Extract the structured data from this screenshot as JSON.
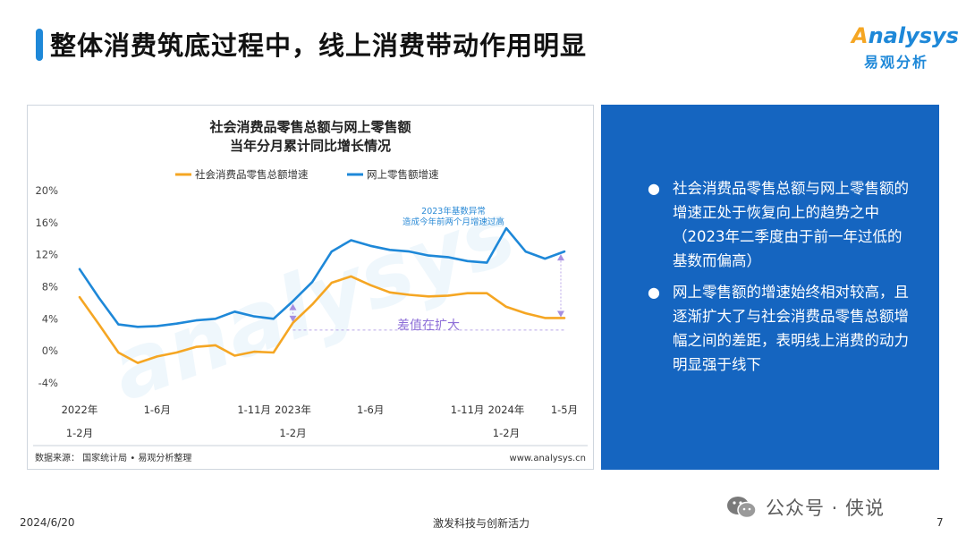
{
  "page": {
    "title": "整体消费筑底过程中，线上消费带动作用明显",
    "logo_en_prefix": "",
    "logo_en_o": "A",
    "logo_en_rest": "nalysys",
    "logo_cn": "易观分析",
    "footer_date": "2024/6/20",
    "footer_center": "激发科技与创新活力",
    "footer_page": "7",
    "wechat_label": "公众号 · 侠说"
  },
  "chart_data": {
    "type": "line",
    "title": "社会消费品零售总额与网上零售额",
    "subtitle": "当年分月累计同比增长情况",
    "categories": [
      "2022年1-2月",
      "2022年1-3月",
      "2022年1-4月",
      "2022年1-5月",
      "2022年1-6月",
      "2022年1-7月",
      "2022年1-8月",
      "2022年1-9月",
      "2022年1-10月",
      "2022年1-11月",
      "2022年1-12月",
      "2023年1-2月",
      "2023年1-3月",
      "2023年1-4月",
      "2023年1-5月",
      "2023年1-6月",
      "2023年1-7月",
      "2023年1-8月",
      "2023年1-9月",
      "2023年1-10月",
      "2023年1-11月",
      "2023年1-12月",
      "2024年1-2月",
      "2024年1-3月",
      "2024年1-4月",
      "2024年1-5月"
    ],
    "tick_labels": [
      {
        "index": 0,
        "lines": [
          "2022年",
          "1-2月"
        ]
      },
      {
        "index": 4,
        "lines": [
          "1-6月"
        ]
      },
      {
        "index": 9,
        "lines": [
          "1-11月"
        ]
      },
      {
        "index": 11,
        "lines": [
          "2023年",
          "1-2月"
        ]
      },
      {
        "index": 15,
        "lines": [
          "1-6月"
        ]
      },
      {
        "index": 20,
        "lines": [
          "1-11月"
        ]
      },
      {
        "index": 22,
        "lines": [
          "2024年",
          "1-2月"
        ]
      },
      {
        "index": 25,
        "lines": [
          "1-5月"
        ]
      }
    ],
    "series": [
      {
        "name": "社会消费品零售总额增速",
        "color": "#f5a623",
        "values": [
          6.7,
          3.3,
          -0.2,
          -1.5,
          -0.7,
          -0.2,
          0.5,
          0.7,
          -0.6,
          -0.1,
          -0.2,
          3.5,
          5.8,
          8.5,
          9.3,
          8.2,
          7.3,
          7.0,
          6.8,
          6.9,
          7.2,
          7.2,
          5.5,
          4.7,
          4.1,
          4.1
        ]
      },
      {
        "name": "网上零售额增速",
        "color": "#1e88d8",
        "values": [
          10.2,
          6.6,
          3.3,
          3.0,
          3.1,
          3.4,
          3.8,
          4.0,
          4.9,
          4.3,
          4.0,
          6.2,
          8.6,
          12.4,
          13.8,
          13.1,
          12.6,
          12.4,
          11.9,
          11.7,
          11.2,
          11.0,
          15.3,
          12.4,
          11.5,
          12.4
        ]
      }
    ],
    "y_ticks": [
      "20%",
      "16%",
      "12%",
      "8%",
      "4%",
      "0%",
      "-4%"
    ],
    "ylim": [
      -4,
      20
    ],
    "legend_position": "top",
    "annotation_base": [
      "2023年基数异常",
      "造成今年前两个月增速过高"
    ],
    "annotation_gap": "差值在扩大",
    "source": "数据来源： 国家统计局 • 易观分析整理",
    "site": "www.analysys.cn"
  },
  "panel": {
    "bullets": [
      "社会消费品零售总额与网上零售额的增速正处于恢复向上的趋势之中（2023年二季度由于前一年过低的基数而偏高）",
      "网上零售额的增速始终相对较高，且逐渐扩大了与社会消费品零售总额增幅之间的差距，表明线上消费的动力明显强于线下"
    ]
  }
}
